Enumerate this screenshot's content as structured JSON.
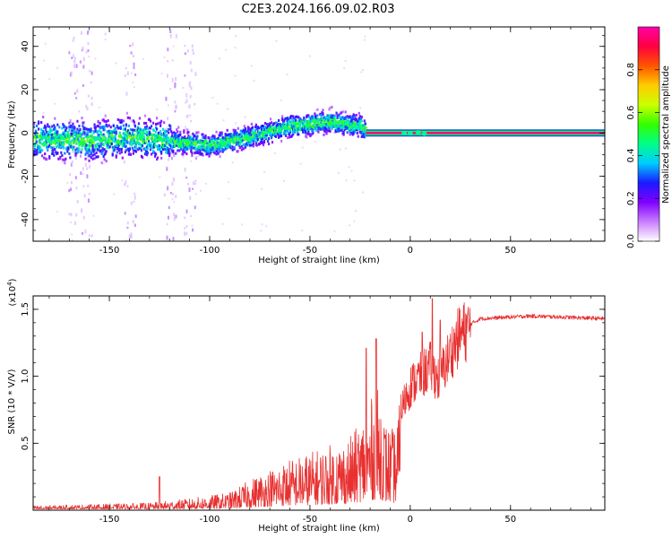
{
  "title": "C2E3.2024.166.09.02.R03",
  "chart_data": [
    {
      "type": "heatmap",
      "name": "spectrogram",
      "xlabel": "Height of straight line (km)",
      "ylabel": "Frequency (Hz)",
      "xlim": [
        -188,
        97
      ],
      "ylim": [
        -50,
        49
      ],
      "xticks": [
        -150,
        -100,
        -50,
        0,
        50
      ],
      "yticks": [
        -40,
        -20,
        0,
        20,
        40
      ],
      "colorbar": {
        "label": "Normalized spectral amplitude",
        "range": [
          0.0,
          1.0
        ],
        "ticks": [
          0.0,
          0.2,
          0.4,
          0.6,
          0.8
        ],
        "tick_labels": [
          "0.0",
          "0.2",
          "0.4",
          "0.6",
          "0.8"
        ],
        "colormap": [
          "#ffffff",
          "#c97dff",
          "#8000ff",
          "#1a1aff",
          "#00ccff",
          "#00ff88",
          "#33ff00",
          "#ccff00",
          "#ffcc00",
          "#ff5500",
          "#ff0040",
          "#ff00aa"
        ]
      },
      "ridge": [
        {
          "x": -188,
          "y": -3
        },
        {
          "x": -160,
          "y": -4
        },
        {
          "x": -140,
          "y": -2
        },
        {
          "x": -120,
          "y": -4
        },
        {
          "x": -100,
          "y": -6
        },
        {
          "x": -80,
          "y": -2
        },
        {
          "x": -60,
          "y": 3
        },
        {
          "x": -40,
          "y": 5
        },
        {
          "x": -25,
          "y": 3
        },
        {
          "x": -20,
          "y": 0
        },
        {
          "x": 97,
          "y": 0
        }
      ],
      "tone": {
        "x_start": -22,
        "x_end": 97,
        "frequency": 0,
        "amplitude": 0.95
      }
    },
    {
      "type": "line",
      "name": "snr",
      "xlabel": "Height of straight line (km)",
      "ylabel": "SNR (10 * V/V)",
      "y_scale_label": "(x10",
      "y_scale_exp": "4",
      "y_scale_close": ")",
      "xlim": [
        -188,
        97
      ],
      "ylim": [
        0,
        1.6
      ],
      "xticks": [
        -150,
        -100,
        -50,
        0,
        50
      ],
      "yticks": [
        0.5,
        1.0,
        1.5
      ],
      "ytick_labels": [
        "0.5",
        "1.0",
        "1.5"
      ],
      "color": "#e83030",
      "envelope": [
        {
          "x": -188,
          "y": 0.03
        },
        {
          "x": -130,
          "y": 0.05
        },
        {
          "x": -110,
          "y": 0.08
        },
        {
          "x": -90,
          "y": 0.12
        },
        {
          "x": -75,
          "y": 0.25
        },
        {
          "x": -60,
          "y": 0.35
        },
        {
          "x": -45,
          "y": 0.42
        },
        {
          "x": -30,
          "y": 0.5
        },
        {
          "x": -25,
          "y": 0.6
        },
        {
          "x": -20,
          "y": 0.75
        },
        {
          "x": -15,
          "y": 0.85
        },
        {
          "x": -12,
          "y": 0.6
        },
        {
          "x": -8,
          "y": 0.55
        },
        {
          "x": -5,
          "y": 0.75
        },
        {
          "x": 0,
          "y": 0.95
        },
        {
          "x": 10,
          "y": 1.1
        },
        {
          "x": 14,
          "y": 1.0
        },
        {
          "x": 20,
          "y": 1.2
        },
        {
          "x": 25,
          "y": 1.35
        },
        {
          "x": 35,
          "y": 1.43
        },
        {
          "x": 60,
          "y": 1.45
        },
        {
          "x": 97,
          "y": 1.43
        }
      ],
      "peaks": [
        {
          "x": -125,
          "y": 0.25
        },
        {
          "x": -22,
          "y": 1.21
        },
        {
          "x": -17,
          "y": 1.28
        },
        {
          "x": 6,
          "y": 1.33
        },
        {
          "x": 11,
          "y": 1.58
        },
        {
          "x": 15,
          "y": 1.42
        }
      ]
    }
  ]
}
